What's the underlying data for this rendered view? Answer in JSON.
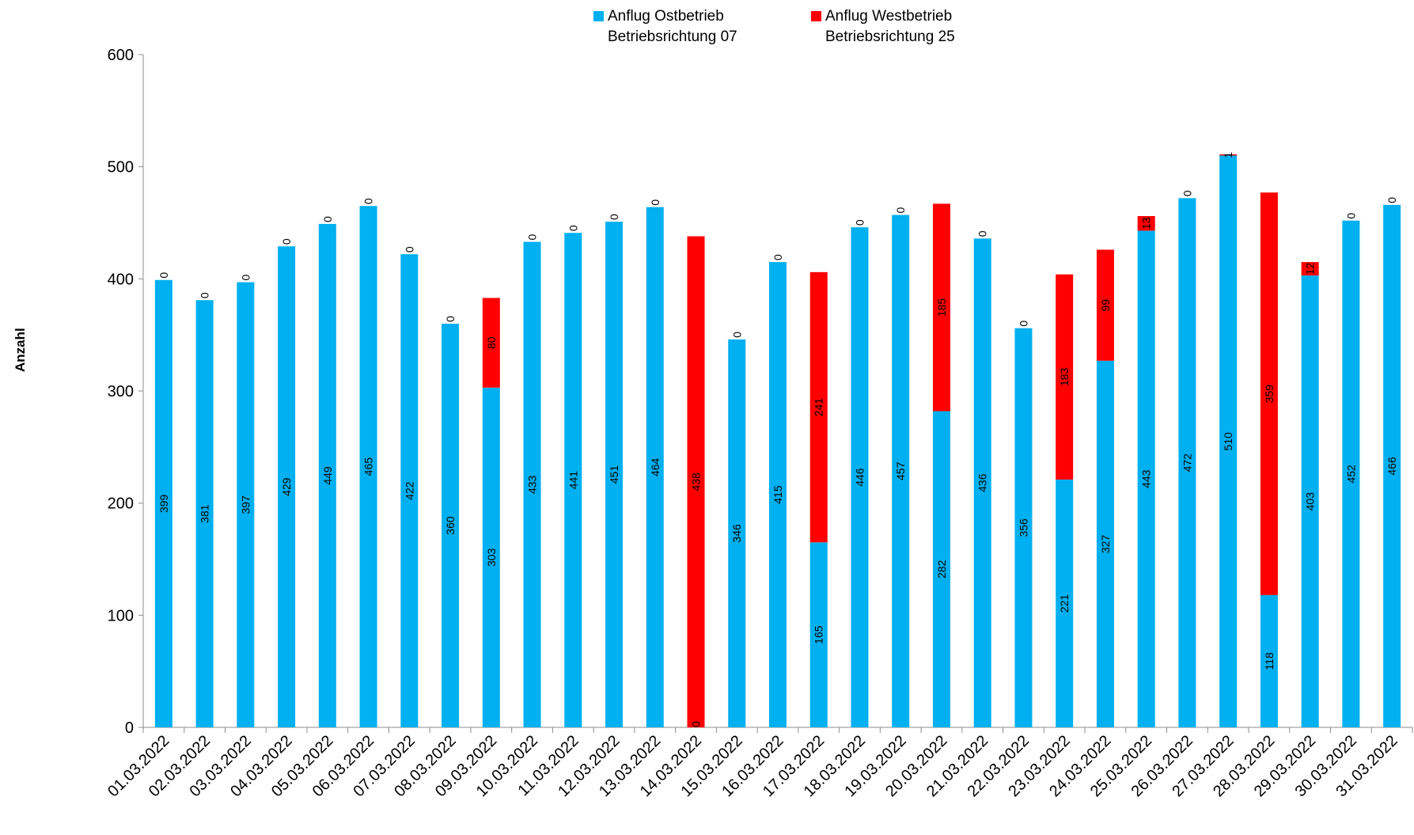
{
  "chart_data": {
    "type": "bar",
    "stacked": true,
    "title": "",
    "xlabel": "",
    "ylabel": "Anzahl",
    "ylim": [
      0,
      600
    ],
    "yticks": [
      0,
      100,
      200,
      300,
      400,
      500,
      600
    ],
    "grid": false,
    "legend_position": "top-center",
    "categories": [
      "01.03.2022",
      "02.03.2022",
      "03.03.2022",
      "04.03.2022",
      "05.03.2022",
      "06.03.2022",
      "07.03.2022",
      "08.03.2022",
      "09.03.2022",
      "10.03.2022",
      "11.03.2022",
      "12.03.2022",
      "13.03.2022",
      "14.03.2022",
      "15.03.2022",
      "16.03.2022",
      "17.03.2022",
      "18.03.2022",
      "19.03.2022",
      "20.03.2022",
      "21.03.2022",
      "22.03.2022",
      "23.03.2022",
      "24.03.2022",
      "25.03.2022",
      "26.03.2022",
      "27.03.2022",
      "28.03.2022",
      "29.03.2022",
      "30.03.2022",
      "31.03.2022"
    ],
    "series": [
      {
        "name_line1": "Anflug Ostbetrieb",
        "name_line2": "Betriebsrichtung 07",
        "color": "#00B0F0",
        "values": [
          399,
          381,
          397,
          429,
          449,
          465,
          422,
          360,
          303,
          433,
          441,
          451,
          464,
          0,
          346,
          415,
          165,
          446,
          457,
          282,
          436,
          356,
          221,
          327,
          443,
          472,
          510,
          118,
          403,
          452,
          466
        ]
      },
      {
        "name_line1": "Anflug Westbetrieb",
        "name_line2": "Betriebsrichtung 25",
        "color": "#FF0000",
        "values": [
          0,
          0,
          0,
          0,
          0,
          0,
          0,
          0,
          80,
          0,
          0,
          0,
          0,
          438,
          0,
          0,
          241,
          0,
          0,
          185,
          0,
          0,
          183,
          99,
          13,
          0,
          1,
          359,
          12,
          0,
          0
        ]
      }
    ]
  }
}
